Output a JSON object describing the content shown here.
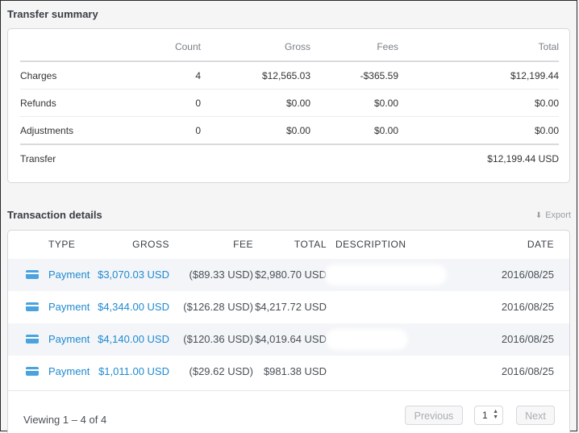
{
  "summary": {
    "title": "Transfer summary",
    "headers": {
      "count": "Count",
      "gross": "Gross",
      "fees": "Fees",
      "total": "Total"
    },
    "rows": [
      {
        "label": "Charges",
        "count": "4",
        "gross": "$12,565.03",
        "fees": "-$365.59",
        "total": "$12,199.44"
      },
      {
        "label": "Refunds",
        "count": "0",
        "gross": "$0.00",
        "fees": "$0.00",
        "total": "$0.00"
      },
      {
        "label": "Adjustments",
        "count": "0",
        "gross": "$0.00",
        "fees": "$0.00",
        "total": "$0.00"
      }
    ],
    "transfer": {
      "label": "Transfer",
      "total": "$12,199.44 USD"
    }
  },
  "transactions": {
    "title": "Transaction details",
    "export_label": "Export",
    "headers": {
      "type": "TYPE",
      "gross": "GROSS",
      "fee": "FEE",
      "total": "TOTAL",
      "description": "DESCRIPTION",
      "date": "DATE"
    },
    "rows": [
      {
        "type": "Payment",
        "gross": "$3,070.03 USD",
        "fee": "($89.33 USD)",
        "total": "$2,980.70 USD",
        "date": "2016/08/25"
      },
      {
        "type": "Payment",
        "gross": "$4,344.00 USD",
        "fee": "($126.28 USD)",
        "total": "$4,217.72 USD",
        "date": "2016/08/25"
      },
      {
        "type": "Payment",
        "gross": "$4,140.00 USD",
        "fee": "($120.36 USD)",
        "total": "$4,019.64 USD",
        "date": "2016/08/25"
      },
      {
        "type": "Payment",
        "gross": "$1,011.00 USD",
        "fee": "($29.62 USD)",
        "total": "$981.38 USD",
        "date": "2016/08/25"
      }
    ]
  },
  "pagination": {
    "viewing_prefix": "Viewing",
    "range": "1 – 4",
    "of_label": "of",
    "total": "4",
    "previous_label": "Previous",
    "page_value": "1",
    "next_label": "Next"
  },
  "colors": {
    "link": "#1f8ad1",
    "card_icon": "#4aa3df"
  },
  "icons": {
    "payment": "credit-card-icon",
    "export": "download-arrow-icon",
    "page_spinner": "up-down-arrows-icon"
  }
}
